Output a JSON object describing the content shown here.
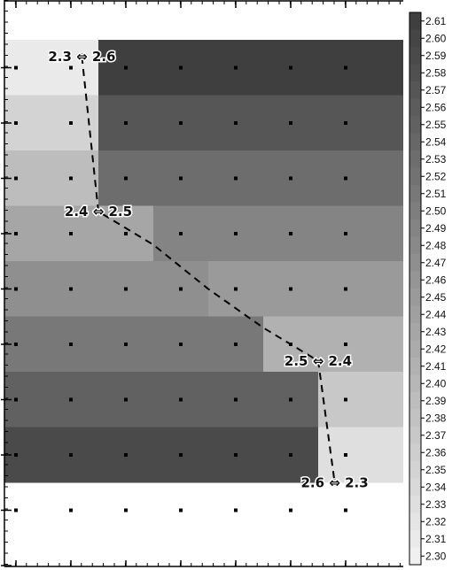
{
  "chart_data": {
    "type": "heatmap",
    "title": "",
    "xlabel": "",
    "ylabel": "",
    "grid": false,
    "colorscale": "grayscale",
    "color_range": [
      2.3,
      2.61
    ],
    "rows": [
      {
        "boundary_col": 1.5,
        "left_value": 2.31,
        "right_value": 2.61
      },
      {
        "boundary_col": 1.5,
        "left_value": 2.35,
        "right_value": 2.57
      },
      {
        "boundary_col": 1.5,
        "left_value": 2.39,
        "right_value": 2.53
      },
      {
        "boundary_col": 2.5,
        "left_value": 2.43,
        "right_value": 2.49
      },
      {
        "boundary_col": 3.5,
        "left_value": 2.47,
        "right_value": 2.45
      },
      {
        "boundary_col": 4.5,
        "left_value": 2.51,
        "right_value": 2.41
      },
      {
        "boundary_col": 5.5,
        "left_value": 2.55,
        "right_value": 2.37
      },
      {
        "boundary_col": 5.5,
        "left_value": 2.59,
        "right_value": 2.33
      }
    ],
    "dots": {
      "columns": 7,
      "rows": 9
    },
    "colorbar": {
      "ticks": [
        "2.61",
        "2.60",
        "2.59",
        "2.58",
        "2.57",
        "2.56",
        "2.55",
        "2.54",
        "2.53",
        "2.52",
        "2.51",
        "2.50",
        "2.49",
        "2.48",
        "2.47",
        "2.46",
        "2.45",
        "2.44",
        "2.43",
        "2.42",
        "2.41",
        "2.40",
        "2.39",
        "2.38",
        "2.37",
        "2.36",
        "2.35",
        "2.34",
        "2.33",
        "2.32",
        "2.31",
        "2.30"
      ]
    },
    "dashed_line": [
      {
        "col": 1.2,
        "row": -0.2
      },
      {
        "col": 1.5,
        "row": 2.6
      },
      {
        "col": 2.5,
        "row": 3.2
      },
      {
        "col": 3.5,
        "row": 4.0
      },
      {
        "col": 4.5,
        "row": 4.7
      },
      {
        "col": 5.5,
        "row": 5.3
      },
      {
        "col": 5.8,
        "row": 7.5
      }
    ],
    "annotations": [
      {
        "text": "2.3 ⇔ 2.6",
        "col": 1.2,
        "row": -0.2
      },
      {
        "text": "2.4 ⇔ 2.5",
        "col": 1.5,
        "row": 2.6
      },
      {
        "text": "2.5 ⇔ 2.4",
        "col": 5.5,
        "row": 5.3
      },
      {
        "text": "2.6 ⇔ 2.3",
        "col": 5.8,
        "row": 7.5
      }
    ]
  }
}
